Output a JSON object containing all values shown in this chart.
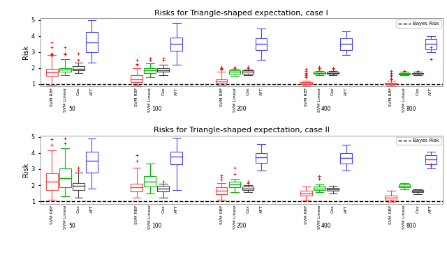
{
  "title1": "Risks for Triangle-shaped expectation, case I",
  "title2": "Risks for Triangle-shaped expectation, case II",
  "ylabel": "Risk",
  "bayes_risk": 1.0,
  "sample_sizes": [
    50,
    100,
    200,
    400,
    800
  ],
  "methods": [
    "SVM RBF",
    "SVM Linear",
    "Cox",
    "AFT"
  ],
  "method_colors": [
    "#FF4444",
    "#00BB00",
    "#444444",
    "#4444FF"
  ],
  "ylim": [
    0.85,
    5.1
  ],
  "yticks": [
    1,
    2,
    3,
    4,
    5
  ],
  "case1": {
    "n50": {
      "SVM RBF": {
        "med": 1.72,
        "q1": 1.5,
        "q3": 1.95,
        "whislo": 0.95,
        "whishi": 2.8,
        "fliers": [
          3.6,
          3.3,
          2.9,
          2.85,
          2.75
        ]
      },
      "SVM Linear": {
        "med": 1.88,
        "q1": 1.76,
        "q3": 2.0,
        "whislo": 1.55,
        "whishi": 2.55,
        "fliers": [
          3.3,
          2.9,
          2.85
        ]
      },
      "Cox": {
        "med": 1.95,
        "q1": 1.85,
        "q3": 2.1,
        "whislo": 1.7,
        "whishi": 2.35,
        "fliers": [
          2.5,
          2.9
        ]
      },
      "AFT": {
        "med": 3.6,
        "q1": 3.0,
        "q3": 4.25,
        "whislo": 2.35,
        "whishi": 5.0,
        "fliers": []
      }
    },
    "n100": {
      "SVM RBF": {
        "med": 1.3,
        "q1": 1.1,
        "q3": 1.55,
        "whislo": 0.88,
        "whishi": 2.0,
        "fliers": [
          2.2,
          2.5,
          2.25
        ]
      },
      "SVM Linear": {
        "med": 1.85,
        "q1": 1.7,
        "q3": 2.0,
        "whislo": 1.4,
        "whishi": 2.3,
        "fliers": [
          2.6,
          2.5
        ]
      },
      "Cox": {
        "med": 1.85,
        "q1": 1.75,
        "q3": 2.0,
        "whislo": 1.55,
        "whishi": 2.2,
        "fliers": [
          2.5,
          2.6
        ]
      },
      "AFT": {
        "med": 3.5,
        "q1": 3.05,
        "q3": 3.9,
        "whislo": 2.2,
        "whishi": 4.8,
        "fliers": []
      }
    },
    "n200": {
      "SVM RBF": {
        "med": 1.15,
        "q1": 1.08,
        "q3": 1.28,
        "whislo": 0.95,
        "whishi": 1.75,
        "fliers": [
          1.95,
          2.0,
          2.05,
          1.88,
          1.92
        ]
      },
      "SVM Linear": {
        "med": 1.76,
        "q1": 1.65,
        "q3": 1.85,
        "whislo": 1.5,
        "whishi": 1.95,
        "fliers": [
          2.0,
          2.05
        ]
      },
      "Cox": {
        "med": 1.76,
        "q1": 1.65,
        "q3": 1.85,
        "whislo": 1.55,
        "whishi": 1.9,
        "fliers": [
          2.0,
          2.05
        ]
      },
      "AFT": {
        "med": 3.5,
        "q1": 3.1,
        "q3": 3.85,
        "whislo": 2.5,
        "whishi": 4.45,
        "fliers": []
      }
    },
    "n400": {
      "SVM RBF": {
        "med": 1.04,
        "q1": 0.99,
        "q3": 1.1,
        "whislo": 0.9,
        "whishi": 1.22,
        "fliers": [
          1.55,
          1.6,
          1.7,
          1.8,
          1.95,
          1.4,
          1.45
        ]
      },
      "SVM Linear": {
        "med": 1.7,
        "q1": 1.64,
        "q3": 1.76,
        "whislo": 1.55,
        "whishi": 1.82,
        "fliers": [
          1.9,
          2.0,
          2.05
        ]
      },
      "Cox": {
        "med": 1.7,
        "q1": 1.64,
        "q3": 1.76,
        "whislo": 1.55,
        "whishi": 1.82,
        "fliers": [
          1.9,
          2.0
        ]
      },
      "AFT": {
        "med": 3.5,
        "q1": 3.1,
        "q3": 3.85,
        "whislo": 2.8,
        "whishi": 4.3,
        "fliers": []
      }
    },
    "n800": {
      "SVM RBF": {
        "med": 1.02,
        "q1": 0.98,
        "q3": 1.06,
        "whislo": 0.9,
        "whishi": 1.2,
        "fliers": [
          1.35,
          1.45,
          1.55,
          1.7,
          1.8,
          1.28,
          1.32
        ]
      },
      "SVM Linear": {
        "med": 1.65,
        "q1": 1.61,
        "q3": 1.7,
        "whislo": 1.55,
        "whishi": 1.75,
        "fliers": [
          1.8,
          1.82
        ]
      },
      "Cox": {
        "med": 1.65,
        "q1": 1.62,
        "q3": 1.7,
        "whislo": 1.55,
        "whishi": 1.75,
        "fliers": [
          1.8
        ]
      },
      "AFT": {
        "med": 3.5,
        "q1": 3.15,
        "q3": 3.8,
        "whislo": 3.0,
        "whishi": 4.0,
        "fliers": [
          2.55,
          3.3
        ]
      }
    }
  },
  "case2": {
    "n50": {
      "SVM RBF": {
        "med": 2.2,
        "q1": 1.7,
        "q3": 2.75,
        "whislo": 1.1,
        "whishi": 4.15,
        "fliers": [
          4.85,
          4.5
        ]
      },
      "SVM Linear": {
        "med": 2.45,
        "q1": 1.85,
        "q3": 3.05,
        "whislo": 1.3,
        "whishi": 4.3,
        "fliers": [
          4.9,
          4.6
        ]
      },
      "Cox": {
        "med": 1.95,
        "q1": 1.7,
        "q3": 2.15,
        "whislo": 1.2,
        "whishi": 2.8,
        "fliers": [
          3.1,
          2.9
        ]
      },
      "AFT": {
        "med": 3.5,
        "q1": 2.8,
        "q3": 4.1,
        "whislo": 1.8,
        "whishi": 4.9,
        "fliers": []
      }
    },
    "n100": {
      "SVM RBF": {
        "med": 1.88,
        "q1": 1.6,
        "q3": 2.1,
        "whislo": 1.2,
        "whishi": 3.1,
        "fliers": [
          3.85,
          3.5
        ]
      },
      "SVM Linear": {
        "med": 2.2,
        "q1": 1.9,
        "q3": 2.55,
        "whislo": 1.5,
        "whishi": 3.35,
        "fliers": []
      },
      "Cox": {
        "med": 1.8,
        "q1": 1.6,
        "q3": 1.95,
        "whislo": 1.2,
        "whishi": 2.1,
        "fliers": [
          2.2
        ]
      },
      "AFT": {
        "med": 3.8,
        "q1": 3.3,
        "q3": 4.1,
        "whislo": 1.7,
        "whishi": 4.95,
        "fliers": []
      }
    },
    "n200": {
      "SVM RBF": {
        "med": 1.65,
        "q1": 1.45,
        "q3": 1.85,
        "whislo": 1.1,
        "whishi": 2.15,
        "fliers": [
          2.5,
          2.6,
          2.35
        ]
      },
      "SVM Linear": {
        "med": 2.05,
        "q1": 1.88,
        "q3": 2.2,
        "whislo": 1.55,
        "whishi": 2.4,
        "fliers": [
          3.1,
          2.7
        ]
      },
      "Cox": {
        "med": 1.8,
        "q1": 1.7,
        "q3": 1.9,
        "whislo": 1.55,
        "whishi": 2.0,
        "fliers": [
          2.15,
          2.2
        ]
      },
      "AFT": {
        "med": 3.75,
        "q1": 3.4,
        "q3": 4.0,
        "whislo": 2.9,
        "whishi": 4.55,
        "fliers": []
      }
    },
    "n400": {
      "SVM RBF": {
        "med": 1.5,
        "q1": 1.35,
        "q3": 1.65,
        "whislo": 1.05,
        "whishi": 1.92,
        "fliers": []
      },
      "SVM Linear": {
        "med": 1.8,
        "q1": 1.7,
        "q3": 1.9,
        "whislo": 1.55,
        "whishi": 2.05,
        "fliers": [
          2.4,
          2.55
        ]
      },
      "Cox": {
        "med": 1.75,
        "q1": 1.65,
        "q3": 1.82,
        "whislo": 1.5,
        "whishi": 1.95,
        "fliers": []
      },
      "AFT": {
        "med": 3.7,
        "q1": 3.35,
        "q3": 4.0,
        "whislo": 2.9,
        "whishi": 4.5,
        "fliers": []
      }
    },
    "n800": {
      "SVM RBF": {
        "med": 1.2,
        "q1": 1.1,
        "q3": 1.35,
        "whislo": 0.95,
        "whishi": 1.65,
        "fliers": []
      },
      "SVM Linear": {
        "med": 1.95,
        "q1": 1.85,
        "q3": 2.05,
        "whislo": 1.75,
        "whishi": 2.15,
        "fliers": []
      },
      "Cox": {
        "med": 1.62,
        "q1": 1.55,
        "q3": 1.7,
        "whislo": 1.45,
        "whishi": 1.75,
        "fliers": []
      },
      "AFT": {
        "med": 3.6,
        "q1": 3.3,
        "q3": 3.85,
        "whislo": 3.05,
        "whishi": 4.1,
        "fliers": [
          3.3,
          3.2
        ]
      }
    }
  }
}
